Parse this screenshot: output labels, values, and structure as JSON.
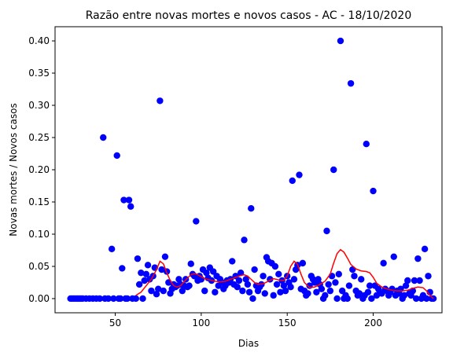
{
  "chart_data": {
    "type": "scatter",
    "title": "Razão entre novas mortes e novos casos - AC - 18/10/2020",
    "xlabel": "Dias",
    "ylabel": "Novas mortes / Novos casos",
    "xlim": [
      15,
      240
    ],
    "ylim": [
      -0.022,
      0.422
    ],
    "x_ticks": [
      50,
      100,
      150,
      200
    ],
    "x_tick_labels": [
      "50",
      "100",
      "150",
      "200"
    ],
    "y_ticks": [
      0.0,
      0.05,
      0.1,
      0.15,
      0.2,
      0.25,
      0.3,
      0.35,
      0.4
    ],
    "y_tick_labels": [
      "0.00",
      "0.05",
      "0.10",
      "0.15",
      "0.20",
      "0.25",
      "0.30",
      "0.35",
      "0.40"
    ],
    "colors": {
      "points": "#0000ff",
      "trend": "#ff0000"
    },
    "series": [
      {
        "kind": "scatter",
        "points": [
          [
            24,
            0
          ],
          [
            25,
            0
          ],
          [
            26,
            0
          ],
          [
            27,
            0
          ],
          [
            28,
            0
          ],
          [
            29,
            0
          ],
          [
            30,
            0
          ],
          [
            31,
            0
          ],
          [
            33,
            0
          ],
          [
            35,
            0
          ],
          [
            37,
            0
          ],
          [
            39,
            0
          ],
          [
            41,
            0
          ],
          [
            43,
            0.25
          ],
          [
            44,
            0
          ],
          [
            46,
            0
          ],
          [
            48,
            0.077
          ],
          [
            49,
            0
          ],
          [
            51,
            0.222
          ],
          [
            52,
            0
          ],
          [
            53,
            0
          ],
          [
            54,
            0.047
          ],
          [
            55,
            0.153
          ],
          [
            56,
            0
          ],
          [
            57,
            0
          ],
          [
            58,
            0.153
          ],
          [
            59,
            0.143
          ],
          [
            60,
            0
          ],
          [
            62,
            0
          ],
          [
            63,
            0.062
          ],
          [
            64,
            0.022
          ],
          [
            65,
            0.04
          ],
          [
            66,
            0
          ],
          [
            67,
            0.028
          ],
          [
            68,
            0.038
          ],
          [
            69,
            0.052
          ],
          [
            70,
            0.03
          ],
          [
            71,
            0.012
          ],
          [
            72,
            0.035
          ],
          [
            73,
            0.048
          ],
          [
            74,
            0.007
          ],
          [
            75,
            0.015
          ],
          [
            76,
            0.307
          ],
          [
            77,
            0.045
          ],
          [
            78,
            0.012
          ],
          [
            79,
            0.065
          ],
          [
            80,
            0.042
          ],
          [
            81,
            0.025
          ],
          [
            82,
            0.008
          ],
          [
            83,
            0.015
          ],
          [
            84,
            0.022
          ],
          [
            85,
            0.018
          ],
          [
            86,
            0.02
          ],
          [
            87,
            0.03
          ],
          [
            88,
            0.022
          ],
          [
            89,
            0.012
          ],
          [
            90,
            0.02
          ],
          [
            91,
            0.03
          ],
          [
            92,
            0.018
          ],
          [
            93,
            0.02
          ],
          [
            94,
            0.054
          ],
          [
            95,
            0.038
          ],
          [
            96,
            0.035
          ],
          [
            97,
            0.12
          ],
          [
            98,
            0.028
          ],
          [
            99,
            0.035
          ],
          [
            100,
            0.03
          ],
          [
            101,
            0.045
          ],
          [
            102,
            0.012
          ],
          [
            103,
            0.04
          ],
          [
            104,
            0.032
          ],
          [
            105,
            0.048
          ],
          [
            106,
            0.028
          ],
          [
            107,
            0.042
          ],
          [
            108,
            0.01
          ],
          [
            109,
            0.035
          ],
          [
            110,
            0.02
          ],
          [
            111,
            0.03
          ],
          [
            112,
            0.025
          ],
          [
            113,
            0.015
          ],
          [
            114,
            0.02
          ],
          [
            115,
            0.028
          ],
          [
            116,
            0.025
          ],
          [
            117,
            0.03
          ],
          [
            118,
            0.058
          ],
          [
            119,
            0.022
          ],
          [
            120,
            0.035
          ],
          [
            121,
            0.018
          ],
          [
            122,
            0.028
          ],
          [
            123,
            0.04
          ],
          [
            124,
            0.012
          ],
          [
            125,
            0.091
          ],
          [
            126,
            0.03
          ],
          [
            127,
            0.022
          ],
          [
            128,
            0.01
          ],
          [
            129,
            0.14
          ],
          [
            130,
            0
          ],
          [
            131,
            0.045
          ],
          [
            132,
            0.02
          ],
          [
            133,
            0.012
          ],
          [
            134,
            0.018
          ],
          [
            135,
            0.022
          ],
          [
            136,
            0.035
          ],
          [
            137,
            0.008
          ],
          [
            138,
            0.064
          ],
          [
            139,
            0.058
          ],
          [
            140,
            0.03
          ],
          [
            141,
            0.055
          ],
          [
            142,
            0.005
          ],
          [
            143,
            0.05
          ],
          [
            144,
            0.022
          ],
          [
            145,
            0.038
          ],
          [
            146,
            0.01
          ],
          [
            147,
            0.028
          ],
          [
            148,
            0.02
          ],
          [
            149,
            0.012
          ],
          [
            150,
            0.035
          ],
          [
            151,
            0.025
          ],
          [
            152,
            0.018
          ],
          [
            153,
            0.183
          ],
          [
            154,
            0.03
          ],
          [
            155,
            0.045
          ],
          [
            156,
            0.052
          ],
          [
            157,
            0.192
          ],
          [
            158,
            0.015
          ],
          [
            159,
            0.055
          ],
          [
            160,
            0.012
          ],
          [
            161,
            0.005
          ],
          [
            162,
            0.008
          ],
          [
            163,
            0.02
          ],
          [
            164,
            0.035
          ],
          [
            165,
            0.03
          ],
          [
            166,
            0.025
          ],
          [
            167,
            0.01
          ],
          [
            168,
            0.03
          ],
          [
            169,
            0.022
          ],
          [
            170,
            0.015
          ],
          [
            171,
            0
          ],
          [
            172,
            0.005
          ],
          [
            173,
            0.105
          ],
          [
            174,
            0.022
          ],
          [
            175,
            0.012
          ],
          [
            176,
            0.035
          ],
          [
            177,
            0.2
          ],
          [
            178,
            0.025
          ],
          [
            179,
            0
          ],
          [
            180,
            0.038
          ],
          [
            181,
            0.4
          ],
          [
            182,
            0.012
          ],
          [
            183,
            0
          ],
          [
            184,
            0.005
          ],
          [
            185,
            0
          ],
          [
            186,
            0.02
          ],
          [
            187,
            0.334
          ],
          [
            188,
            0.045
          ],
          [
            189,
            0.035
          ],
          [
            190,
            0.012
          ],
          [
            191,
            0.005
          ],
          [
            192,
            0.008
          ],
          [
            193,
            0.03
          ],
          [
            194,
            0
          ],
          [
            195,
            0.005
          ],
          [
            196,
            0.24
          ],
          [
            197,
            0.01
          ],
          [
            198,
            0.02
          ],
          [
            199,
            0
          ],
          [
            200,
            0.167
          ],
          [
            201,
            0.02
          ],
          [
            202,
            0.005
          ],
          [
            203,
            0.015
          ],
          [
            204,
            0.01
          ],
          [
            205,
            0.008
          ],
          [
            206,
            0.055
          ],
          [
            207,
            0.015
          ],
          [
            208,
            0.012
          ],
          [
            209,
            0.005
          ],
          [
            210,
            0.01
          ],
          [
            211,
            0.015
          ],
          [
            212,
            0.065
          ],
          [
            213,
            0.005
          ],
          [
            214,
            0.012
          ],
          [
            215,
            0.008
          ],
          [
            216,
            0.015
          ],
          [
            217,
            0
          ],
          [
            218,
            0.005
          ],
          [
            219,
            0.02
          ],
          [
            220,
            0.028
          ],
          [
            221,
            0.008
          ],
          [
            222,
            0.005
          ],
          [
            223,
            0.012
          ],
          [
            224,
            0.028
          ],
          [
            225,
            0
          ],
          [
            226,
            0.062
          ],
          [
            227,
            0.028
          ],
          [
            228,
            0
          ],
          [
            229,
            0.005
          ],
          [
            230,
            0.077
          ],
          [
            231,
            0
          ],
          [
            232,
            0.035
          ],
          [
            233,
            0.01
          ],
          [
            234,
            0
          ],
          [
            235,
            0
          ]
        ]
      },
      {
        "kind": "line",
        "points": [
          [
            62,
            0.005
          ],
          [
            65,
            0.01
          ],
          [
            68,
            0.02
          ],
          [
            71,
            0.03
          ],
          [
            74,
            0.045
          ],
          [
            76,
            0.058
          ],
          [
            78,
            0.054
          ],
          [
            80,
            0.04
          ],
          [
            82,
            0.028
          ],
          [
            84,
            0.02
          ],
          [
            86,
            0.018
          ],
          [
            88,
            0.02
          ],
          [
            90,
            0.026
          ],
          [
            92,
            0.032
          ],
          [
            94,
            0.037
          ],
          [
            96,
            0.039
          ],
          [
            98,
            0.037
          ],
          [
            100,
            0.034
          ],
          [
            102,
            0.031
          ],
          [
            105,
            0.029
          ],
          [
            108,
            0.027
          ],
          [
            111,
            0.026
          ],
          [
            114,
            0.027
          ],
          [
            117,
            0.03
          ],
          [
            120,
            0.033
          ],
          [
            123,
            0.036
          ],
          [
            125,
            0.037
          ],
          [
            127,
            0.035
          ],
          [
            129,
            0.03
          ],
          [
            131,
            0.025
          ],
          [
            133,
            0.022
          ],
          [
            136,
            0.023
          ],
          [
            139,
            0.027
          ],
          [
            142,
            0.031
          ],
          [
            145,
            0.029
          ],
          [
            148,
            0.028
          ],
          [
            150,
            0.035
          ],
          [
            152,
            0.05
          ],
          [
            154,
            0.058
          ],
          [
            156,
            0.053
          ],
          [
            158,
            0.038
          ],
          [
            160,
            0.025
          ],
          [
            163,
            0.017
          ],
          [
            166,
            0.018
          ],
          [
            169,
            0.022
          ],
          [
            172,
            0.027
          ],
          [
            175,
            0.038
          ],
          [
            177,
            0.055
          ],
          [
            179,
            0.07
          ],
          [
            181,
            0.076
          ],
          [
            183,
            0.072
          ],
          [
            185,
            0.063
          ],
          [
            187,
            0.053
          ],
          [
            190,
            0.046
          ],
          [
            193,
            0.043
          ],
          [
            196,
            0.042
          ],
          [
            198,
            0.04
          ],
          [
            200,
            0.033
          ],
          [
            202,
            0.024
          ],
          [
            205,
            0.018
          ],
          [
            208,
            0.015
          ],
          [
            211,
            0.013
          ],
          [
            214,
            0.012
          ],
          [
            217,
            0.012
          ],
          [
            220,
            0.013
          ],
          [
            223,
            0.016
          ],
          [
            226,
            0.018
          ],
          [
            229,
            0.017
          ],
          [
            231,
            0.012
          ],
          [
            233,
            0.005
          ],
          [
            235,
            0
          ]
        ]
      }
    ]
  }
}
